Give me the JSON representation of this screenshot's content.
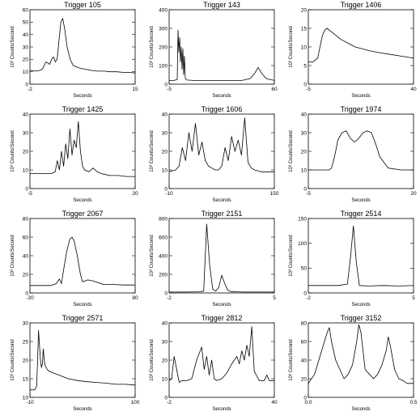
{
  "chart_data": [
    {
      "type": "line",
      "title": "Trigger 105",
      "xlabel": "Seconds",
      "ylabel": "10³ Counts/Second",
      "xticks": [
        "-2",
        "15"
      ],
      "xlim": [
        -2,
        15
      ],
      "yticks": [
        0,
        10,
        20,
        30,
        40,
        50,
        60
      ],
      "ylim": [
        0,
        60
      ],
      "x": [
        -2,
        -1.5,
        -1,
        -0.5,
        0,
        0.3,
        0.6,
        0.9,
        1.2,
        1.5,
        1.8,
        2.1,
        2.4,
        2.7,
        3,
        3.3,
        3.6,
        4,
        4.5,
        5,
        6,
        7,
        8,
        9,
        10,
        11,
        12,
        13,
        14,
        15
      ],
      "values": [
        11,
        11,
        10.5,
        11,
        12,
        15,
        18,
        17,
        16,
        20,
        22,
        18,
        20,
        35,
        50,
        53,
        45,
        30,
        20,
        15,
        13,
        12,
        11,
        10.5,
        10.5,
        10,
        10,
        9.5,
        9.5,
        9
      ]
    },
    {
      "type": "line",
      "title": "Trigger 143",
      "xlabel": "Seconds",
      "ylabel": "10³ Counts/Second",
      "xticks": [
        "-5",
        "60"
      ],
      "xlim": [
        -5,
        60
      ],
      "yticks": [
        0,
        100,
        200,
        300,
        400
      ],
      "ylim": [
        0,
        400
      ],
      "x": [
        -5,
        -2,
        0,
        0.5,
        1,
        1.5,
        2,
        2.5,
        3,
        3.5,
        4,
        4.5,
        5,
        6,
        10,
        20,
        30,
        40,
        45,
        48,
        50,
        52,
        55,
        60
      ],
      "values": [
        20,
        20,
        25,
        290,
        170,
        250,
        120,
        200,
        80,
        190,
        50,
        150,
        30,
        22,
        20,
        20,
        20,
        20,
        30,
        60,
        90,
        60,
        30,
        20
      ]
    },
    {
      "type": "line",
      "title": "Trigger 1406",
      "xlabel": "Seconds",
      "ylabel": "10³ Counts/Second",
      "xticks": [
        "-5",
        "40"
      ],
      "xlim": [
        -5,
        40
      ],
      "yticks": [
        0,
        5,
        10,
        15,
        20
      ],
      "ylim": [
        0,
        20
      ],
      "x": [
        -5,
        -3,
        -1,
        0,
        1,
        2,
        3,
        4,
        5,
        7,
        9,
        12,
        15,
        18,
        21,
        25,
        30,
        35,
        40
      ],
      "values": [
        6,
        6,
        7,
        10,
        13,
        14.5,
        15,
        14.5,
        14,
        13,
        12,
        11,
        10,
        9.5,
        9,
        8.5,
        8,
        7.5,
        7
      ]
    },
    {
      "type": "line",
      "title": "Trigger 1425",
      "xlabel": "Seconds",
      "ylabel": "10³ Counts/Second",
      "xticks": [
        "-5",
        "20"
      ],
      "xlim": [
        -5,
        20
      ],
      "yticks": [
        0,
        10,
        20,
        30,
        40
      ],
      "ylim": [
        0,
        40
      ],
      "x": [
        -5,
        -2,
        0,
        1,
        1.5,
        2,
        2.5,
        3,
        3.5,
        4,
        4.5,
        5,
        5.5,
        6,
        6.5,
        7,
        7.5,
        8,
        9,
        10,
        11,
        12,
        14,
        16,
        18,
        20
      ],
      "values": [
        8,
        8,
        8,
        9,
        15,
        10,
        20,
        12,
        24,
        16,
        32,
        18,
        26,
        22,
        36,
        20,
        12,
        10,
        9,
        11,
        9,
        8,
        7,
        7,
        6.5,
        6.5
      ]
    },
    {
      "type": "line",
      "title": "Trigger 1606",
      "xlabel": "Seconds",
      "ylabel": "10³ Counts/Second",
      "xticks": [
        "-10",
        "150"
      ],
      "xlim": [
        -10,
        150
      ],
      "yticks": [
        0,
        10,
        20,
        30,
        40
      ],
      "ylim": [
        0,
        40
      ],
      "x": [
        -10,
        0,
        5,
        10,
        15,
        20,
        25,
        30,
        35,
        40,
        45,
        50,
        55,
        60,
        65,
        70,
        75,
        80,
        85,
        90,
        95,
        100,
        105,
        110,
        115,
        120,
        130,
        140,
        150
      ],
      "values": [
        9,
        10,
        12,
        22,
        15,
        30,
        20,
        35,
        18,
        25,
        15,
        12,
        11,
        10,
        10,
        12,
        22,
        15,
        28,
        20,
        26,
        18,
        38,
        14,
        11,
        10,
        9,
        9,
        9
      ]
    },
    {
      "type": "line",
      "title": "Trigger 1974",
      "xlabel": "Seconds",
      "ylabel": "10³ Counts/Second",
      "xticks": [
        "-5",
        "20"
      ],
      "xlim": [
        -5,
        20
      ],
      "yticks": [
        0,
        10,
        20,
        30,
        40
      ],
      "ylim": [
        0,
        40
      ],
      "x": [
        -5,
        -2,
        0,
        0.5,
        1,
        1.5,
        2,
        3,
        4,
        5,
        6,
        7,
        8,
        9,
        10,
        11,
        12,
        14,
        17,
        20
      ],
      "values": [
        10,
        10,
        10,
        11,
        15,
        20,
        26,
        30,
        31,
        27,
        25,
        27,
        30,
        31,
        30,
        24,
        17,
        11,
        10,
        10
      ]
    },
    {
      "type": "line",
      "title": "Trigger 2067",
      "xlabel": "Seconds",
      "ylabel": "10³ Counts/Second",
      "xticks": [
        "-20",
        "80"
      ],
      "xlim": [
        -20,
        80
      ],
      "yticks": [
        0,
        20,
        40,
        60,
        80
      ],
      "ylim": [
        0,
        80
      ],
      "x": [
        -20,
        -10,
        0,
        5,
        8,
        10,
        12,
        15,
        18,
        20,
        22,
        25,
        28,
        30,
        35,
        40,
        50,
        60,
        70,
        80
      ],
      "values": [
        8,
        8,
        8,
        10,
        15,
        10,
        25,
        45,
        58,
        60,
        56,
        40,
        20,
        12,
        14,
        13,
        9,
        9,
        8.5,
        8.5
      ]
    },
    {
      "type": "line",
      "title": "Trigger 2151",
      "xlabel": "Seconds",
      "ylabel": "10³ Counts/Second",
      "xticks": [
        "-2",
        "5"
      ],
      "xlim": [
        -2,
        5
      ],
      "yticks": [
        0,
        200,
        400,
        600,
        800
      ],
      "ylim": [
        0,
        800
      ],
      "x": [
        -2,
        -1,
        0,
        0.3,
        0.5,
        0.7,
        0.9,
        1.1,
        1.3,
        1.5,
        1.7,
        1.9,
        2.1,
        2.5,
        3,
        4,
        5
      ],
      "values": [
        10,
        10,
        12,
        20,
        740,
        300,
        40,
        20,
        60,
        190,
        100,
        30,
        15,
        12,
        10,
        10,
        10
      ]
    },
    {
      "type": "line",
      "title": "Trigger 2514",
      "xlabel": "Seconds",
      "ylabel": "10³ Counts/Second",
      "xticks": [
        "-2",
        "5"
      ],
      "xlim": [
        -2,
        5
      ],
      "yticks": [
        0,
        50,
        100,
        150
      ],
      "ylim": [
        0,
        150
      ],
      "x": [
        -2,
        -1,
        0,
        0.6,
        0.8,
        1,
        1.2,
        1.4,
        2,
        3,
        4,
        5
      ],
      "values": [
        15,
        15,
        15,
        18,
        70,
        135,
        60,
        15,
        14,
        15,
        14,
        15
      ]
    },
    {
      "type": "line",
      "title": "Trigger 2571",
      "xlabel": "Seconds",
      "ylabel": "10³ Counts/Second",
      "xticks": [
        "-10",
        "100"
      ],
      "xlim": [
        -10,
        100
      ],
      "yticks": [
        10,
        15,
        20,
        25,
        30
      ],
      "ylim": [
        10,
        30
      ],
      "x": [
        -10,
        -5,
        -3,
        -2,
        -1,
        0,
        1,
        2,
        3,
        4,
        5,
        6,
        8,
        10,
        15,
        20,
        30,
        40,
        50,
        60,
        70,
        80,
        90,
        100
      ],
      "values": [
        12,
        12,
        13,
        20,
        28,
        24,
        20,
        18,
        19,
        23,
        20,
        18.5,
        17.5,
        17,
        16.5,
        16,
        15,
        14.5,
        14.2,
        14,
        13.8,
        13.5,
        13.5,
        13.3
      ]
    },
    {
      "type": "line",
      "title": "Trigger 2812",
      "xlabel": "Seconds",
      "ylabel": "10³ Counts/Second",
      "xticks": [
        "-2",
        "40"
      ],
      "xlim": [
        -2,
        40
      ],
      "yticks": [
        0,
        10,
        20,
        30,
        40
      ],
      "ylim": [
        0,
        40
      ],
      "x": [
        -2,
        -1,
        0,
        1,
        2,
        3,
        5,
        7,
        9,
        11,
        12,
        13,
        14,
        15,
        16,
        17,
        19,
        21,
        23,
        25,
        26,
        27,
        28,
        29,
        30,
        31,
        32,
        34,
        36,
        37,
        38,
        40
      ],
      "values": [
        9,
        10,
        22,
        15,
        8,
        9,
        9,
        10,
        20,
        27,
        15,
        22,
        12,
        20,
        10,
        9,
        10,
        13,
        18,
        22,
        18,
        25,
        20,
        28,
        22,
        38,
        14,
        9,
        9,
        12,
        9,
        9
      ]
    },
    {
      "type": "line",
      "title": "Trigger 3152",
      "xlabel": "Seconds",
      "ylabel": "10³ Counts/Second",
      "xticks": [
        "0.0",
        "0.5"
      ],
      "xlim": [
        0,
        0.5
      ],
      "yticks": [
        0,
        20,
        40,
        60,
        80
      ],
      "ylim": [
        0,
        80
      ],
      "x": [
        0,
        0.03,
        0.05,
        0.07,
        0.09,
        0.1,
        0.11,
        0.13,
        0.15,
        0.17,
        0.19,
        0.21,
        0.23,
        0.24,
        0.25,
        0.26,
        0.27,
        0.29,
        0.31,
        0.33,
        0.35,
        0.37,
        0.38,
        0.39,
        0.41,
        0.43,
        0.45,
        0.47,
        0.5
      ],
      "values": [
        15,
        25,
        40,
        55,
        70,
        75,
        60,
        40,
        30,
        20,
        25,
        35,
        60,
        78,
        70,
        50,
        30,
        25,
        20,
        25,
        35,
        50,
        65,
        55,
        30,
        20,
        18,
        15,
        15
      ]
    }
  ]
}
